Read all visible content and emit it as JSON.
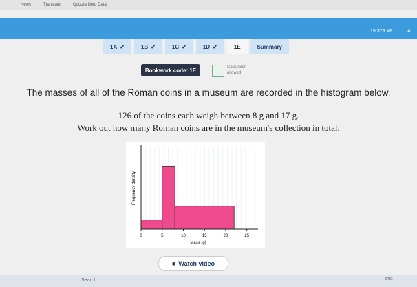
{
  "browser": {
    "bookmarks": [
      "News",
      "Translate",
      "Quizzia Nerd Data"
    ]
  },
  "header": {
    "xp": "19,378 XP",
    "user": "Ar"
  },
  "tabs": [
    {
      "label": "1A",
      "done": true
    },
    {
      "label": "1B",
      "done": true
    },
    {
      "label": "1C",
      "done": true
    },
    {
      "label": "1D",
      "done": true
    },
    {
      "label": "1E",
      "done": false,
      "current": true
    },
    {
      "label": "Summary",
      "done": false
    }
  ],
  "bookwork": "Bookwork code: 1E",
  "calculator": [
    "Calculator",
    "allowed"
  ],
  "question": [
    "The masses of all of the Roman coins in a museum are recorded in the histogram below.",
    "126 of the coins each weigh between 8 g and 17 g.",
    "Work out how many Roman coins are in the museum's collection in total."
  ],
  "chart_data": {
    "type": "histogram",
    "bins": [
      0,
      5,
      8,
      17,
      22
    ],
    "values": [
      5.6,
      38.5,
      14,
      14
    ],
    "color": "#ee4a8c",
    "xlim": [
      0,
      27
    ],
    "xticks": [
      0,
      5,
      10,
      15,
      20,
      25
    ],
    "ylim": [
      0,
      50
    ],
    "x_label": "Mass (g)",
    "y_label": "Frequency density"
  },
  "button": "Watch video",
  "taskbar": {
    "search": "Search",
    "lang": "ENG"
  }
}
